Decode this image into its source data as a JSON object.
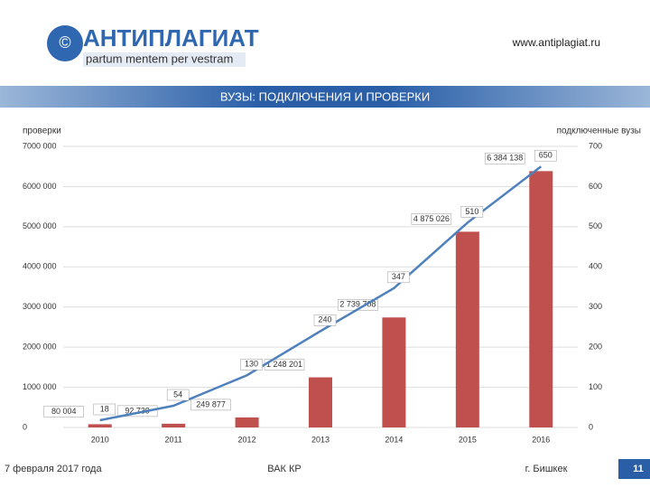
{
  "header": {
    "logo": "АНТИПЛАГИАТ",
    "motto": "partum mentem per vestram",
    "url": "www.antiplagiat.ru"
  },
  "footer": {
    "date": "7 февраля 2017 года",
    "center": "ВАК КР",
    "city": "г. Бишкек",
    "page": "11"
  },
  "chart_data": {
    "type": "bar",
    "title": "ВУЗЫ: ПОДКЛЮЧЕНИЯ И ПРОВЕРКИ",
    "ylabel": "проверки",
    "y2label": "подключенные вузы",
    "categories": [
      "2010",
      "2011",
      "2012",
      "2013",
      "2014",
      "2015",
      "2016"
    ],
    "series": [
      {
        "type": "bar",
        "color": "#c0504d",
        "values": [
          80004,
          92739,
          249877,
          1248201,
          2739708,
          4875026,
          6384138
        ],
        "value_labels": [
          "80 004",
          "92 739",
          "249 877",
          "1 248 201",
          "2 739 708",
          "4 875 026",
          "6 384 138"
        ]
      },
      {
        "type": "line",
        "axis": "y2",
        "color": "#4f81bd",
        "values": [
          18,
          54,
          130,
          240,
          347,
          510,
          650
        ]
      }
    ],
    "ylim": [
      0,
      7000000
    ],
    "yticks": [
      0,
      {
        "value": 1000000,
        "label": "1000 000"
      },
      {
        "value": 2000000,
        "label": "2000 000"
      },
      {
        "value": 3000000,
        "label": "3000 000"
      },
      {
        "value": 4000000,
        "label": "4000 000"
      },
      {
        "value": 5000000,
        "label": "5000 000"
      },
      {
        "value": 6000000,
        "label": "6000 000"
      },
      {
        "value": 7000000,
        "label": "7000 000"
      }
    ],
    "y2lim": [
      0,
      700
    ],
    "y2ticks": [
      0,
      100,
      200,
      300,
      400,
      500,
      600,
      700
    ],
    "grid": true
  }
}
